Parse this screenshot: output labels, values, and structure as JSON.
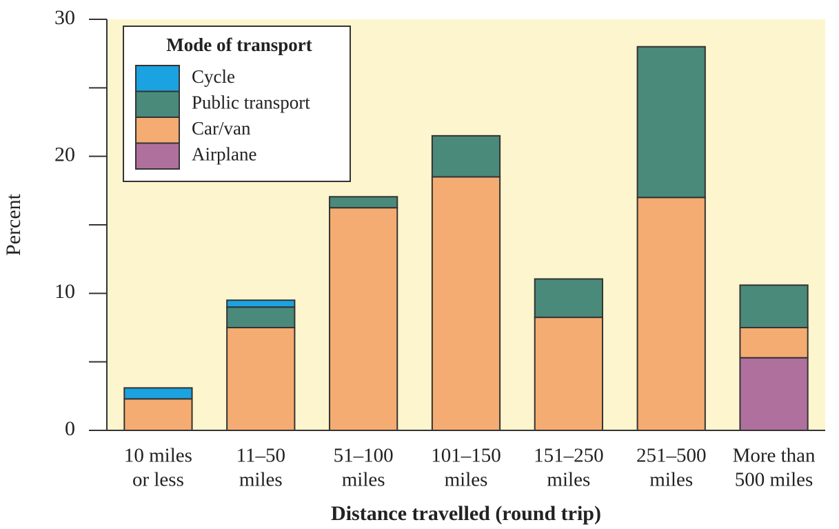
{
  "chart_data": {
    "type": "stacked_bar",
    "categories": [
      [
        "10 miles",
        "or less"
      ],
      [
        "11–50",
        "miles"
      ],
      [
        "51–100",
        "miles"
      ],
      [
        "101–150",
        "miles"
      ],
      [
        "151–250",
        "miles"
      ],
      [
        "251–500",
        "miles"
      ],
      [
        "More than",
        "500 miles"
      ]
    ],
    "series": [
      {
        "name": "Cycle",
        "color": "#1aa3e0",
        "values": [
          0.8,
          0.5,
          0,
          0,
          0,
          0,
          0
        ]
      },
      {
        "name": "Public transport",
        "color": "#4a8a7a",
        "values": [
          0,
          1.5,
          0.8,
          3.0,
          2.8,
          11.0,
          3.1
        ]
      },
      {
        "name": "Car/van",
        "color": "#f4ac72",
        "values": [
          2.3,
          7.5,
          16.25,
          18.5,
          8.25,
          17.0,
          2.2
        ]
      },
      {
        "name": "Airplane",
        "color": "#b0709e",
        "values": [
          0,
          0,
          0,
          0,
          0,
          0,
          5.3
        ]
      }
    ],
    "legend_title": "Mode of transport",
    "legend_position": "upper left",
    "x_label": "Distance travelled (round trip)",
    "y_label": "Percent",
    "ylim": [
      0,
      30
    ],
    "yticks": [
      0,
      10,
      20,
      30
    ],
    "minor_yticks": [
      5,
      15,
      25
    ]
  }
}
